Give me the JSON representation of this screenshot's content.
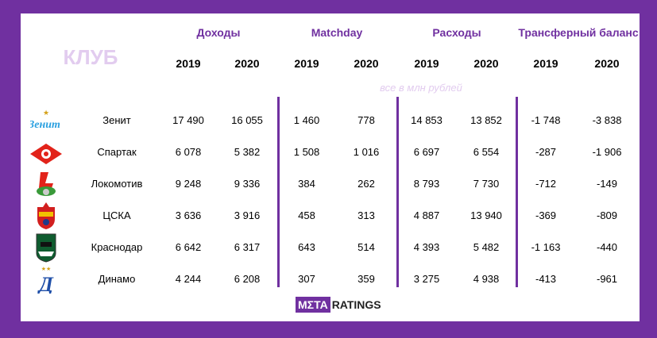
{
  "header": {
    "club_label": "КЛУБ",
    "groups": [
      "Доходы",
      "Matchday",
      "Расходы",
      "Трансферный баланс"
    ],
    "years": [
      "2019",
      "2020",
      "2019",
      "2020",
      "2019",
      "2020",
      "2019",
      "2020"
    ],
    "note": "все в млн рублей"
  },
  "rows": [
    {
      "club": "Зенит",
      "logo": "zenit-logo",
      "values": [
        "17 490",
        "16 055",
        "1 460",
        "778",
        "14 853",
        "13 852",
        "-1 748",
        "-3 838"
      ]
    },
    {
      "club": "Спартак",
      "logo": "spartak-logo",
      "values": [
        "6 078",
        "5 382",
        "1 508",
        "1 016",
        "6 697",
        "6 554",
        "-287",
        "-1 906"
      ]
    },
    {
      "club": "Локомотив",
      "logo": "lokomotiv-logo",
      "values": [
        "9 248",
        "9 336",
        "384",
        "262",
        "8 793",
        "7 730",
        "-712",
        "-149"
      ]
    },
    {
      "club": "ЦСКА",
      "logo": "cska-logo",
      "values": [
        "3 636",
        "3 916",
        "458",
        "313",
        "4 887",
        "13 940",
        "-369",
        "-809"
      ]
    },
    {
      "club": "Краснодар",
      "logo": "krasnodar-logo",
      "values": [
        "6 642",
        "6 317",
        "643",
        "514",
        "4 393",
        "5 482",
        "-1 163",
        "-440"
      ]
    },
    {
      "club": "Динамо",
      "logo": "dinamo-logo",
      "values": [
        "4 244",
        "6 208",
        "307",
        "359",
        "3 275",
        "4 938",
        "-413",
        "-961"
      ]
    }
  ],
  "brand": {
    "meta": "MΣTA",
    "ratings": "RATINGS"
  },
  "colors": {
    "accent": "#7030a0",
    "muted": "#e2ccef"
  }
}
